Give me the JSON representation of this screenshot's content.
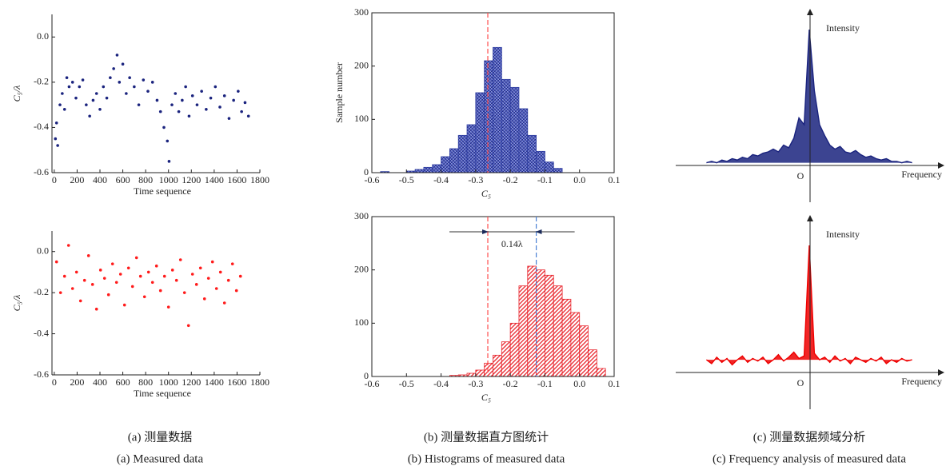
{
  "chart_data": [
    {
      "type": "scatter",
      "color": "#1a237e",
      "y_label": "C₅/λ",
      "x_label": "Time sequence",
      "xlim": [
        -20,
        1800
      ],
      "ylim": [
        -0.6,
        0.1
      ],
      "xticks": [
        0,
        200,
        400,
        600,
        800,
        1000,
        1200,
        1400,
        1600,
        1800
      ],
      "yticks": [
        {
          "value": 0,
          "label": "0.0"
        },
        -0.2,
        -0.4,
        -0.6
      ],
      "x": [
        10,
        20,
        30,
        50,
        70,
        90,
        110,
        130,
        160,
        190,
        220,
        250,
        280,
        310,
        340,
        370,
        400,
        430,
        460,
        490,
        520,
        550,
        570,
        600,
        630,
        660,
        700,
        740,
        780,
        820,
        860,
        900,
        930,
        960,
        990,
        1005,
        1030,
        1060,
        1090,
        1120,
        1150,
        1180,
        1210,
        1250,
        1290,
        1330,
        1370,
        1410,
        1450,
        1490,
        1530,
        1570,
        1610,
        1640,
        1670,
        1700
      ],
      "values": [
        -0.45,
        -0.38,
        -0.48,
        -0.3,
        -0.25,
        -0.32,
        -0.18,
        -0.22,
        -0.2,
        -0.27,
        -0.22,
        -0.19,
        -0.3,
        -0.35,
        -0.28,
        -0.25,
        -0.32,
        -0.22,
        -0.27,
        -0.18,
        -0.14,
        -0.08,
        -0.2,
        -0.12,
        -0.25,
        -0.18,
        -0.22,
        -0.3,
        -0.19,
        -0.24,
        -0.2,
        -0.28,
        -0.33,
        -0.4,
        -0.46,
        -0.55,
        -0.3,
        -0.25,
        -0.33,
        -0.28,
        -0.22,
        -0.35,
        -0.26,
        -0.3,
        -0.24,
        -0.32,
        -0.27,
        -0.22,
        -0.31,
        -0.26,
        -0.36,
        -0.28,
        -0.24,
        -0.33,
        -0.29,
        -0.35
      ]
    },
    {
      "type": "histogram",
      "color": "#2b3a9e",
      "fill": "blue",
      "y_label": "Sample number",
      "x_label": "C₅",
      "xlim": [
        -0.6,
        0.1
      ],
      "ylim": [
        0,
        300
      ],
      "xticks": [
        -0.6,
        -0.5,
        -0.4,
        -0.3,
        -0.2,
        -0.1,
        {
          "value": 0,
          "label": "0.0"
        },
        0.1
      ],
      "yticks": [
        0,
        100,
        200,
        300
      ],
      "bins": [
        -0.575,
        -0.55,
        -0.525,
        -0.5,
        -0.475,
        -0.45,
        -0.425,
        -0.4,
        -0.375,
        -0.35,
        -0.325,
        -0.3,
        -0.275,
        -0.25,
        -0.225,
        -0.2,
        -0.175,
        -0.15,
        -0.125,
        -0.1,
        -0.075,
        -0.05
      ],
      "values": [
        2,
        0,
        0,
        3,
        6,
        10,
        15,
        30,
        45,
        70,
        90,
        150,
        210,
        235,
        175,
        160,
        120,
        70,
        40,
        20,
        8
      ],
      "ref_lines": [
        {
          "value": -0.265,
          "color": "#ff4d4d"
        }
      ]
    },
    {
      "type": "spectrum",
      "color": "#1a237e",
      "y_label": "Intensity",
      "x_label": "Frequency",
      "origin_label": "O",
      "xlim": [
        -21,
        21
      ],
      "ylim": [
        0,
        1
      ],
      "x": [
        -20,
        -19,
        -18,
        -17,
        -16,
        -15,
        -14,
        -13,
        -12,
        -11,
        -10,
        -9,
        -8,
        -7,
        -6,
        -5,
        -4,
        -3,
        -2,
        -1,
        0,
        1,
        2,
        3,
        4,
        5,
        6,
        7,
        8,
        9,
        10,
        11,
        12,
        13,
        14,
        15,
        16,
        17,
        18,
        19,
        20
      ],
      "values": [
        0.02,
        0.03,
        0.02,
        0.04,
        0.03,
        0.05,
        0.04,
        0.06,
        0.05,
        0.08,
        0.07,
        0.09,
        0.1,
        0.12,
        0.1,
        0.15,
        0.13,
        0.2,
        0.35,
        0.3,
        1.0,
        0.55,
        0.3,
        0.22,
        0.15,
        0.12,
        0.14,
        0.1,
        0.09,
        0.11,
        0.08,
        0.06,
        0.07,
        0.05,
        0.04,
        0.05,
        0.03,
        0.03,
        0.02,
        0.03,
        0.02
      ]
    },
    {
      "type": "scatter",
      "color": "#ff1a1a",
      "y_label": "C₅/λ",
      "x_label": "Time sequence",
      "xlim": [
        -20,
        1800
      ],
      "ylim": [
        -0.6,
        0.1
      ],
      "xticks": [
        0,
        200,
        400,
        600,
        800,
        1000,
        1200,
        1400,
        1600,
        1800
      ],
      "yticks": [
        {
          "value": 0,
          "label": "0.0"
        },
        -0.2,
        -0.4,
        -0.6
      ],
      "x": [
        20,
        55,
        90,
        125,
        160,
        195,
        230,
        265,
        300,
        335,
        370,
        405,
        440,
        475,
        510,
        545,
        580,
        615,
        650,
        685,
        720,
        755,
        790,
        825,
        860,
        895,
        930,
        965,
        1000,
        1035,
        1070,
        1105,
        1140,
        1175,
        1210,
        1245,
        1280,
        1315,
        1350,
        1385,
        1420,
        1455,
        1490,
        1525,
        1560,
        1595,
        1630
      ],
      "values": [
        -0.05,
        -0.2,
        -0.12,
        0.03,
        -0.18,
        -0.1,
        -0.24,
        -0.14,
        -0.02,
        -0.16,
        -0.28,
        -0.09,
        -0.13,
        -0.21,
        -0.06,
        -0.15,
        -0.11,
        -0.26,
        -0.08,
        -0.17,
        -0.03,
        -0.12,
        -0.22,
        -0.1,
        -0.15,
        -0.07,
        -0.19,
        -0.12,
        -0.27,
        -0.09,
        -0.14,
        -0.04,
        -0.2,
        -0.36,
        -0.11,
        -0.16,
        -0.08,
        -0.23,
        -0.13,
        -0.05,
        -0.18,
        -0.1,
        -0.25,
        -0.14,
        -0.06,
        -0.19,
        -0.12
      ]
    },
    {
      "type": "histogram",
      "color": "#e8222a",
      "fill": "red",
      "x_label": "C₅",
      "xlim": [
        -0.6,
        0.1
      ],
      "ylim": [
        0,
        300
      ],
      "xticks": [
        -0.6,
        -0.5,
        -0.4,
        -0.3,
        -0.2,
        -0.1,
        {
          "value": 0,
          "label": "0.0"
        },
        0.1
      ],
      "yticks": [
        0,
        100,
        200,
        300
      ],
      "bins": [
        -0.375,
        -0.35,
        -0.325,
        -0.3,
        -0.275,
        -0.25,
        -0.225,
        -0.2,
        -0.175,
        -0.15,
        -0.125,
        -0.1,
        -0.075,
        -0.05,
        -0.025,
        0,
        0.025,
        0.05,
        0.075
      ],
      "values": [
        2,
        3,
        6,
        12,
        25,
        40,
        65,
        100,
        170,
        207,
        200,
        190,
        170,
        145,
        120,
        95,
        50,
        15
      ],
      "ref_lines": [
        {
          "value": -0.265,
          "color": "#ff4d4d"
        },
        {
          "value": -0.125,
          "color": "#4a7fd4"
        }
      ],
      "annotation": {
        "text": "0.14λ",
        "from": -0.265,
        "to": -0.125
      }
    },
    {
      "type": "spectrum",
      "color": "#ee0000",
      "y_label": "Intensity",
      "x_label": "Frequency",
      "origin_label": "O",
      "xlim": [
        -21,
        21
      ],
      "ylim": [
        0,
        1
      ],
      "x": [
        -20,
        -19,
        -18,
        -17,
        -16,
        -15,
        -14,
        -13,
        -12,
        -11,
        -10,
        -9,
        -8,
        -7,
        -6,
        -5,
        -4,
        -3,
        -2,
        -1,
        0,
        1,
        2,
        3,
        4,
        5,
        6,
        7,
        8,
        9,
        10,
        11,
        12,
        13,
        14,
        15,
        16,
        17,
        18,
        19,
        20
      ],
      "values": [
        0.1,
        0.07,
        0.12,
        0.08,
        0.11,
        0.06,
        0.1,
        0.13,
        0.08,
        0.11,
        0.09,
        0.12,
        0.07,
        0.1,
        0.14,
        0.09,
        0.12,
        0.16,
        0.11,
        0.13,
        1.0,
        0.15,
        0.1,
        0.12,
        0.08,
        0.13,
        0.09,
        0.11,
        0.07,
        0.12,
        0.1,
        0.08,
        0.11,
        0.09,
        0.12,
        0.07,
        0.1,
        0.08,
        0.11,
        0.09,
        0.1
      ]
    }
  ],
  "captions": [
    [
      "(a) 测量数据",
      "(a) Measured data"
    ],
    [
      "(b) 测量数据直方图统计",
      "(b) Histograms of measured data"
    ],
    [
      "(c) 测量数据频域分析",
      "(c) Frequency analysis of measured data"
    ]
  ]
}
